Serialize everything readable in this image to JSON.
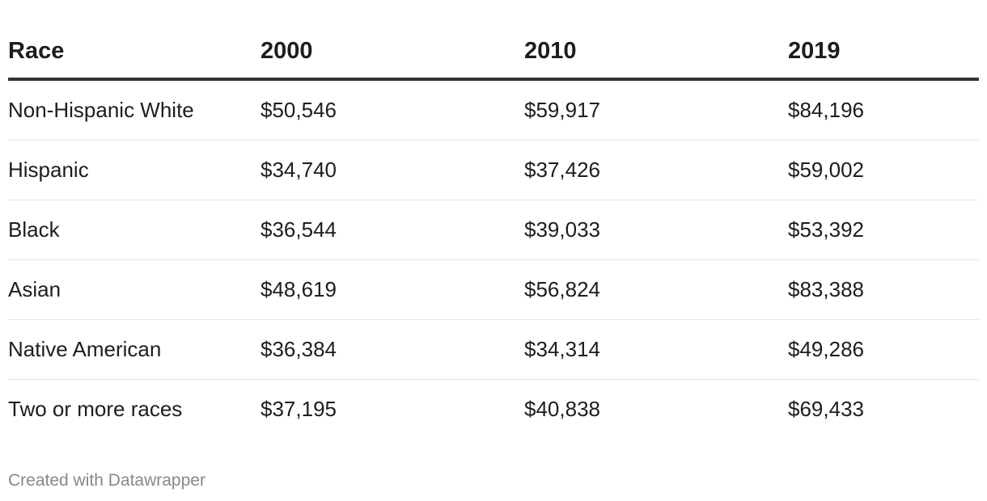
{
  "chart_data": {
    "type": "table",
    "columns": [
      "Race",
      "2000",
      "2010",
      "2019"
    ],
    "rows": [
      [
        "Non-Hispanic White",
        "$50,546",
        "$59,917",
        "$84,196"
      ],
      [
        "Hispanic",
        "$34,740",
        "$37,426",
        "$59,002"
      ],
      [
        "Black",
        "$36,544",
        "$39,033",
        "$53,392"
      ],
      [
        "Asian",
        "$48,619",
        "$56,824",
        "$83,388"
      ],
      [
        "Native American",
        "$36,384",
        "$34,314",
        "$49,286"
      ],
      [
        "Two or more races",
        "$37,195",
        "$40,838",
        "$69,433"
      ]
    ]
  },
  "footer": {
    "credit": "Created with Datawrapper"
  },
  "colors": {
    "text": "#1d1d1d",
    "header_rule": "#333333",
    "row_rule": "#e6e6e6",
    "footer_text": "#888888"
  }
}
